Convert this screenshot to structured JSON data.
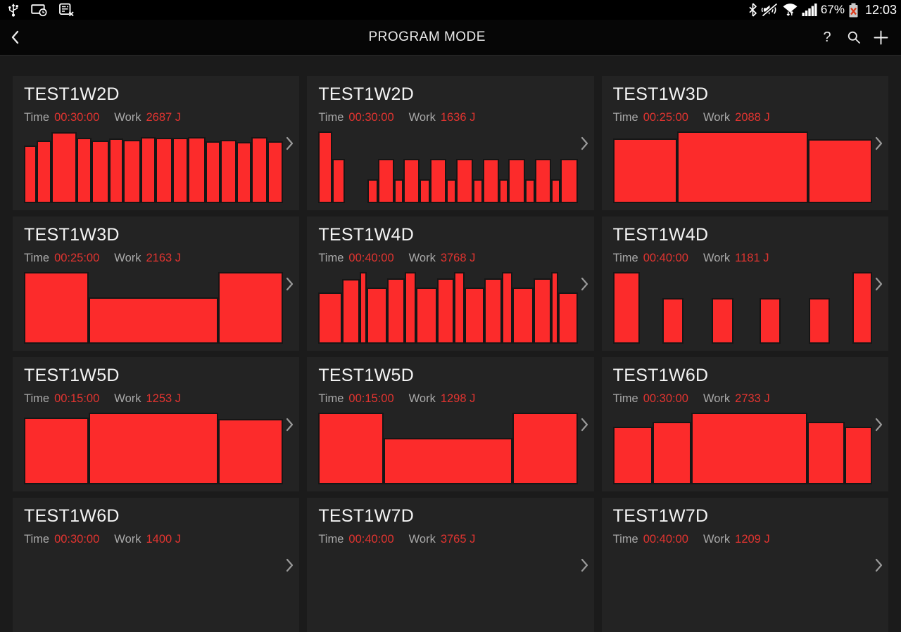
{
  "status_bar": {
    "battery_percent": "67%",
    "time": "12:03",
    "left_icons": [
      "usb-icon",
      "screen-timeout-clock-icon",
      "sim-doc-x-icon"
    ],
    "right_icons": [
      "bluetooth-icon",
      "mute-icon",
      "wifi-icon",
      "signal-strength-icon",
      "battery-error-icon"
    ]
  },
  "app_bar": {
    "title": "PROGRAM MODE",
    "help_label": "?"
  },
  "labels": {
    "time": "Time",
    "work": "Work"
  },
  "colors": {
    "page_bg": "#1b1b1b",
    "card_bg": "#232323",
    "bar_fill": "#fc2b2b",
    "bar_border": "#161616",
    "value_red": "#e23430",
    "label_gray": "#a9a9a9",
    "chevron_gray": "#9a9a9a"
  },
  "cards": [
    {
      "title": "TEST1W2D",
      "time": "00:30:00",
      "work": "2687 J",
      "bars": [
        {
          "w": 1.1,
          "h": 0.8
        },
        {
          "w": 1.3,
          "h": 0.87
        },
        {
          "w": 2.5,
          "h": 0.99
        },
        {
          "w": 1.3,
          "h": 0.91
        },
        {
          "w": 1.6,
          "h": 0.87
        },
        {
          "w": 1.3,
          "h": 0.9
        },
        {
          "w": 1.6,
          "h": 0.88
        },
        {
          "w": 1.3,
          "h": 0.92
        },
        {
          "w": 1.6,
          "h": 0.91
        },
        {
          "w": 1.4,
          "h": 0.91
        },
        {
          "w": 1.6,
          "h": 0.92
        },
        {
          "w": 1.3,
          "h": 0.86
        },
        {
          "w": 1.5,
          "h": 0.88
        },
        {
          "w": 1.3,
          "h": 0.85
        },
        {
          "w": 1.5,
          "h": 0.92
        },
        {
          "w": 1.4,
          "h": 0.86
        }
      ]
    },
    {
      "title": "TEST1W2D",
      "time": "00:30:00",
      "work": "1636 J",
      "bars": [
        {
          "w": 1.5,
          "h": 1.0
        },
        {
          "w": 1.4,
          "h": 0.62
        },
        {
          "w": 3.2,
          "h": 0
        },
        {
          "w": 1.0,
          "h": 0.33
        },
        {
          "w": 1.9,
          "h": 0.62
        },
        {
          "w": 0.9,
          "h": 0.33
        },
        {
          "w": 1.9,
          "h": 0.62
        },
        {
          "w": 1.0,
          "h": 0.33
        },
        {
          "w": 1.9,
          "h": 0.62
        },
        {
          "w": 1.0,
          "h": 0.33
        },
        {
          "w": 1.9,
          "h": 0.62
        },
        {
          "w": 1.0,
          "h": 0.33
        },
        {
          "w": 1.9,
          "h": 0.62
        },
        {
          "w": 0.9,
          "h": 0.33
        },
        {
          "w": 1.9,
          "h": 0.62
        },
        {
          "w": 1.0,
          "h": 0.33
        },
        {
          "w": 1.9,
          "h": 0.62
        },
        {
          "w": 0.9,
          "h": 0.33
        },
        {
          "w": 2.0,
          "h": 0.62
        }
      ]
    },
    {
      "title": "TEST1W3D",
      "time": "00:25:00",
      "work": "2088 J",
      "bars": [
        {
          "w": 1.0,
          "h": 0.9
        },
        {
          "w": 2.1,
          "h": 1.0
        },
        {
          "w": 1.0,
          "h": 0.89
        }
      ]
    },
    {
      "title": "TEST1W3D",
      "time": "00:25:00",
      "work": "2163 J",
      "bars": [
        {
          "w": 1.0,
          "h": 1.0
        },
        {
          "w": 2.05,
          "h": 0.65
        },
        {
          "w": 1.0,
          "h": 1.0
        }
      ]
    },
    {
      "title": "TEST1W4D",
      "time": "00:40:00",
      "work": "3768 J",
      "bars": [
        {
          "w": 2.4,
          "h": 0.72
        },
        {
          "w": 1.7,
          "h": 0.9
        },
        {
          "w": 0.5,
          "h": 1.0
        },
        {
          "w": 2.0,
          "h": 0.78
        },
        {
          "w": 1.7,
          "h": 0.91
        },
        {
          "w": 1.0,
          "h": 1.0
        },
        {
          "w": 2.1,
          "h": 0.78
        },
        {
          "w": 1.6,
          "h": 0.91
        },
        {
          "w": 0.9,
          "h": 1.0
        },
        {
          "w": 1.9,
          "h": 0.78
        },
        {
          "w": 1.7,
          "h": 0.91
        },
        {
          "w": 0.9,
          "h": 1.0
        },
        {
          "w": 2.1,
          "h": 0.78
        },
        {
          "w": 1.7,
          "h": 0.91
        },
        {
          "w": 0.5,
          "h": 1.0
        },
        {
          "w": 1.9,
          "h": 0.72
        }
      ]
    },
    {
      "title": "TEST1W4D",
      "time": "00:40:00",
      "work": "1181 J",
      "bars": [
        {
          "w": 1.3,
          "h": 1.0
        },
        {
          "w": 1.2,
          "h": 0
        },
        {
          "w": 1.0,
          "h": 0.64
        },
        {
          "w": 1.5,
          "h": 0
        },
        {
          "w": 1.0,
          "h": 0.64
        },
        {
          "w": 1.4,
          "h": 0
        },
        {
          "w": 1.0,
          "h": 0.64
        },
        {
          "w": 1.5,
          "h": 0
        },
        {
          "w": 1.0,
          "h": 0.64
        },
        {
          "w": 1.2,
          "h": 0
        },
        {
          "w": 0.9,
          "h": 1.0
        }
      ]
    },
    {
      "title": "TEST1W5D",
      "time": "00:15:00",
      "work": "1253 J",
      "bars": [
        {
          "w": 1.0,
          "h": 0.93
        },
        {
          "w": 2.05,
          "h": 1.0
        },
        {
          "w": 1.0,
          "h": 0.91
        }
      ]
    },
    {
      "title": "TEST1W5D",
      "time": "00:15:00",
      "work": "1298 J",
      "bars": [
        {
          "w": 1.0,
          "h": 1.0
        },
        {
          "w": 2.0,
          "h": 0.65
        },
        {
          "w": 1.0,
          "h": 1.0
        }
      ]
    },
    {
      "title": "TEST1W6D",
      "time": "00:30:00",
      "work": "2733 J",
      "bars": [
        {
          "w": 1.5,
          "h": 0.8
        },
        {
          "w": 1.45,
          "h": 0.87
        },
        {
          "w": 4.6,
          "h": 1.0
        },
        {
          "w": 1.4,
          "h": 0.87
        },
        {
          "w": 1.0,
          "h": 0.8
        }
      ]
    },
    {
      "title": "TEST1W6D",
      "time": "00:30:00",
      "work": "1400 J",
      "bars": []
    },
    {
      "title": "TEST1W7D",
      "time": "00:40:00",
      "work": "3765 J",
      "bars": []
    },
    {
      "title": "TEST1W7D",
      "time": "00:40:00",
      "work": "1209 J",
      "bars": []
    }
  ]
}
